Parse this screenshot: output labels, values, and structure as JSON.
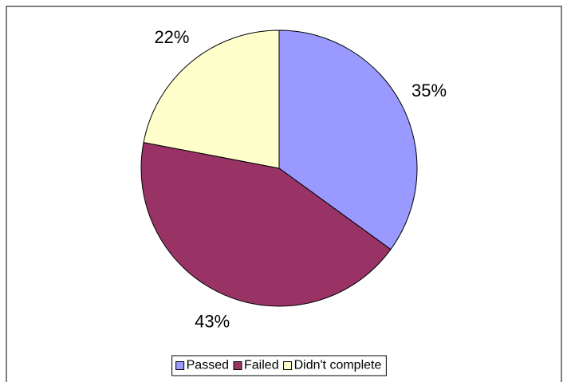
{
  "chart_data": {
    "type": "pie",
    "categories": [
      "Passed",
      "Failed",
      "Didn't complete"
    ],
    "values": [
      35,
      43,
      22
    ],
    "value_labels": [
      "35%",
      "43%",
      "22%"
    ],
    "colors": [
      "#9999ff",
      "#993366",
      "#ffffcc"
    ],
    "legend": "bottom"
  }
}
